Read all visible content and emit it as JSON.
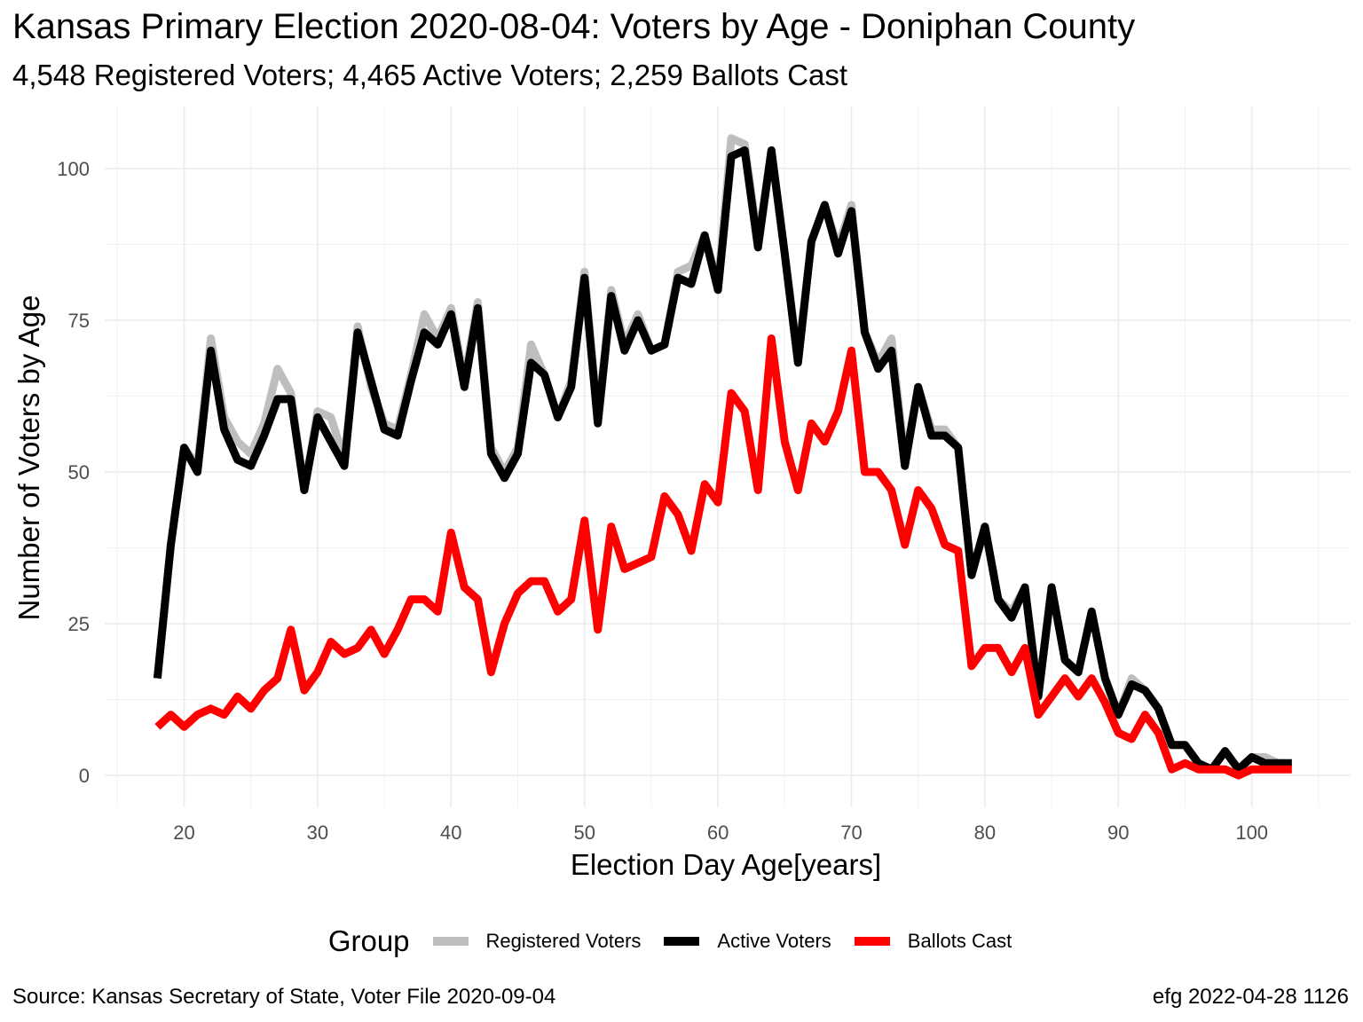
{
  "chart_data": {
    "type": "line",
    "title": "Kansas Primary Election 2020-08-04:  Voters by Age - Doniphan County",
    "subtitle": "4,548 Registered Voters; 4,465 Active Voters; 2,259 Ballots Cast",
    "xlabel": "Election Day Age[years]",
    "ylabel": "Number of Voters by Age",
    "xlim": [
      18,
      103
    ],
    "ylim": [
      0,
      105
    ],
    "x_ticks": [
      20,
      30,
      40,
      50,
      60,
      70,
      80,
      90,
      100
    ],
    "y_ticks": [
      0,
      25,
      50,
      75,
      100
    ],
    "grid": true,
    "legend_title": "Group",
    "legend_position": "bottom",
    "x": [
      18,
      19,
      20,
      21,
      22,
      23,
      24,
      25,
      26,
      27,
      28,
      29,
      30,
      31,
      32,
      33,
      34,
      35,
      36,
      37,
      38,
      39,
      40,
      41,
      42,
      43,
      44,
      45,
      46,
      47,
      48,
      49,
      50,
      51,
      52,
      53,
      54,
      55,
      56,
      57,
      58,
      59,
      60,
      61,
      62,
      63,
      64,
      65,
      66,
      67,
      68,
      69,
      70,
      71,
      72,
      73,
      74,
      75,
      76,
      77,
      78,
      79,
      80,
      81,
      82,
      83,
      84,
      85,
      86,
      87,
      88,
      89,
      90,
      91,
      92,
      93,
      94,
      95,
      96,
      97,
      98,
      99,
      100,
      101,
      102,
      103
    ],
    "series": [
      {
        "name": "Registered Voters",
        "color": "#bebebe",
        "values": [
          16,
          38,
          54,
          51,
          72,
          59,
          55,
          53,
          58,
          67,
          63,
          47,
          60,
          59,
          52,
          74,
          64,
          58,
          57,
          66,
          76,
          72,
          77,
          65,
          78,
          54,
          50,
          54,
          71,
          66,
          59,
          65,
          83,
          59,
          80,
          71,
          76,
          70,
          71,
          83,
          84,
          89,
          81,
          105,
          104,
          88,
          103,
          86,
          69,
          88,
          94,
          87,
          94,
          73,
          68,
          72,
          52,
          64,
          57,
          57,
          54,
          33,
          41,
          29,
          27,
          31,
          14,
          31,
          19,
          17,
          27,
          16,
          10,
          16,
          14,
          11,
          5,
          5,
          2,
          1,
          4,
          1,
          3,
          3,
          2,
          2
        ]
      },
      {
        "name": "Active Voters",
        "color": "#000000",
        "values": [
          16,
          38,
          54,
          50,
          70,
          57,
          52,
          51,
          56,
          62,
          62,
          47,
          59,
          55,
          51,
          73,
          65,
          57,
          56,
          65,
          73,
          71,
          76,
          64,
          77,
          53,
          49,
          53,
          68,
          66,
          59,
          64,
          82,
          58,
          79,
          70,
          75,
          70,
          71,
          82,
          81,
          89,
          80,
          102,
          103,
          87,
          103,
          86,
          68,
          88,
          94,
          86,
          93,
          73,
          67,
          70,
          51,
          64,
          56,
          56,
          54,
          33,
          41,
          29,
          26,
          31,
          13,
          31,
          19,
          17,
          27,
          16,
          10,
          15,
          14,
          11,
          5,
          5,
          2,
          1,
          4,
          1,
          3,
          2,
          2,
          2
        ]
      },
      {
        "name": "Ballots Cast",
        "color": "#ff0000",
        "values": [
          8,
          10,
          8,
          10,
          11,
          10,
          13,
          11,
          14,
          16,
          24,
          14,
          17,
          22,
          20,
          21,
          24,
          20,
          24,
          29,
          29,
          27,
          40,
          31,
          29,
          17,
          25,
          30,
          32,
          32,
          27,
          29,
          42,
          24,
          41,
          34,
          35,
          36,
          46,
          43,
          37,
          48,
          45,
          63,
          60,
          47,
          72,
          55,
          47,
          58,
          55,
          60,
          70,
          50,
          50,
          47,
          38,
          47,
          44,
          38,
          37,
          18,
          21,
          21,
          17,
          21,
          10,
          13,
          16,
          13,
          16,
          12,
          7,
          6,
          10,
          7,
          1,
          2,
          1,
          1,
          1,
          0,
          1,
          1,
          1,
          1
        ]
      }
    ]
  },
  "caption": {
    "left": "Source:  Kansas Secretary of State, Voter File  2020-09-04",
    "right": "efg 2022-04-28 1126"
  }
}
